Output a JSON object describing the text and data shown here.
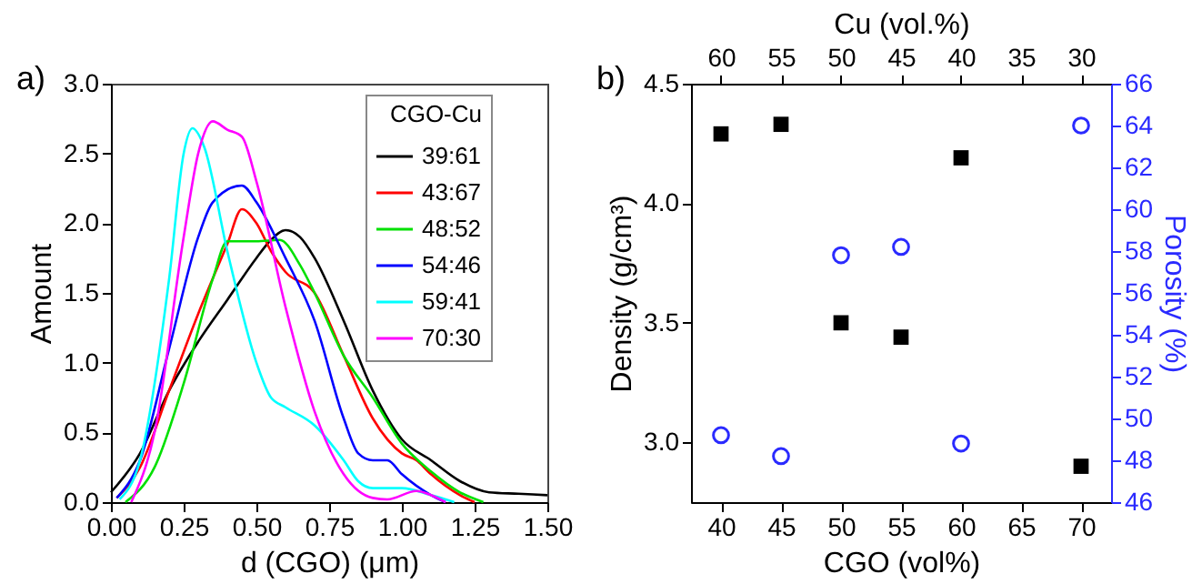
{
  "chart_data": [
    {
      "type": "line",
      "xlabel": "d (CGO) (μm)",
      "ylabel": "Amount",
      "legend_title": "CGO-Cu",
      "legend": "top right",
      "line_style": "solid",
      "marker": "none",
      "annotations": [
        "a)"
      ],
      "xlim": [
        0,
        1.5
      ],
      "ylim": [
        0,
        3.0
      ],
      "xticks": [
        {
          "value": 0,
          "label": "0.00"
        },
        0.25,
        {
          "value": 0.5,
          "label": "0.50"
        },
        0.75,
        {
          "value": 1.0,
          "label": "1.00"
        },
        1.25,
        {
          "value": 1.5,
          "label": "1.50"
        }
      ],
      "yticks": [
        {
          "value": 0,
          "label": "0.0"
        },
        0.5,
        {
          "value": 1.0,
          "label": "1.0"
        },
        1.5,
        {
          "value": 2.0,
          "label": "2.0"
        },
        2.5,
        {
          "value": 3.0,
          "label": "3.0"
        }
      ],
      "series": [
        {
          "name": "39:61",
          "color": "#000000",
          "x": [
            0,
            0.1,
            0.2,
            0.3,
            0.4,
            0.5,
            0.55,
            0.6,
            0.65,
            0.7,
            0.8,
            0.9,
            1.0,
            1.1,
            1.2,
            1.3,
            1.4,
            1.5
          ],
          "values": [
            0.07,
            0.35,
            0.8,
            1.15,
            1.45,
            1.75,
            1.88,
            1.95,
            1.9,
            1.75,
            1.3,
            0.8,
            0.45,
            0.3,
            0.15,
            0.07,
            0.06,
            0.05
          ]
        },
        {
          "name": "43:67",
          "color": "#ff0000",
          "x": [
            0.02,
            0.1,
            0.2,
            0.3,
            0.4,
            0.45,
            0.5,
            0.55,
            0.6,
            0.7,
            0.8,
            0.9,
            1.0,
            1.05,
            1.1,
            1.2,
            1.25
          ],
          "values": [
            0.03,
            0.25,
            0.8,
            1.35,
            1.85,
            2.1,
            2.0,
            1.8,
            1.65,
            1.5,
            1.05,
            0.6,
            0.35,
            0.3,
            0.2,
            0.05,
            0.0
          ]
        },
        {
          "name": "48:52",
          "color": "#00e000",
          "x": [
            0.05,
            0.15,
            0.25,
            0.35,
            0.4,
            0.5,
            0.58,
            0.65,
            0.7,
            0.8,
            0.9,
            1.0,
            1.1,
            1.2,
            1.28
          ],
          "values": [
            0.0,
            0.25,
            0.85,
            1.6,
            1.87,
            1.87,
            1.88,
            1.7,
            1.5,
            1.05,
            0.75,
            0.42,
            0.22,
            0.07,
            0.0
          ]
        },
        {
          "name": "54:46",
          "color": "#0000ff",
          "x": [
            0.02,
            0.1,
            0.2,
            0.3,
            0.35,
            0.45,
            0.5,
            0.6,
            0.7,
            0.8,
            0.85,
            0.9,
            0.95,
            1.0,
            1.1,
            1.15
          ],
          "values": [
            0.03,
            0.3,
            1.1,
            1.9,
            2.15,
            2.27,
            2.15,
            1.75,
            1.3,
            0.6,
            0.35,
            0.3,
            0.3,
            0.2,
            0.05,
            0.0
          ]
        },
        {
          "name": "59:41",
          "color": "#00ffff",
          "x": [
            0.03,
            0.1,
            0.2,
            0.25,
            0.28,
            0.32,
            0.4,
            0.5,
            0.55,
            0.6,
            0.7,
            0.8,
            0.85,
            0.9,
            1.0,
            1.1,
            1.18
          ],
          "values": [
            0.02,
            0.3,
            1.6,
            2.5,
            2.68,
            2.55,
            1.8,
            1.0,
            0.75,
            0.68,
            0.55,
            0.3,
            0.15,
            0.1,
            0.1,
            0.05,
            0.0
          ]
        },
        {
          "name": "70:30",
          "color": "#ff00ff",
          "x": [
            0.07,
            0.15,
            0.25,
            0.3,
            0.35,
            0.4,
            0.45,
            0.5,
            0.6,
            0.7,
            0.8,
            0.9,
            0.95,
            1.05,
            1.1,
            1.15
          ],
          "values": [
            0.0,
            0.5,
            1.9,
            2.5,
            2.73,
            2.67,
            2.62,
            2.3,
            1.4,
            0.65,
            0.2,
            0.03,
            0.02,
            0.08,
            0.05,
            0.0
          ]
        }
      ]
    },
    {
      "type": "scatter",
      "xlabel": "CGO (vol%)",
      "x2label": "Cu (vol.%)",
      "ylabel": "Density (g/cm³)",
      "y2label": "Porosity (%)",
      "annotations": [
        "b)"
      ],
      "x": [
        40,
        45,
        50,
        55,
        60,
        70
      ],
      "xlim": [
        37.5,
        72.5
      ],
      "xticks": [
        40,
        45,
        50,
        55,
        60,
        65,
        70
      ],
      "x2lim": [
        62.5,
        27.5
      ],
      "x2ticks": [
        60,
        55,
        50,
        45,
        40,
        35,
        30
      ],
      "ylim": [
        2.75,
        4.5
      ],
      "yticks": [
        {
          "value": 3.0,
          "label": "3.0"
        },
        3.5,
        {
          "value": 4.0,
          "label": "4.0"
        },
        4.5
      ],
      "y2lim": [
        46,
        66
      ],
      "y2ticks": [
        46,
        48,
        50,
        52,
        54,
        56,
        58,
        60,
        62,
        64,
        66
      ],
      "series": [
        {
          "color": "#000000",
          "marker": "square",
          "values": [
            4.29,
            4.33,
            3.5,
            3.44,
            4.19,
            2.9
          ]
        },
        {
          "color": "#2a2aff",
          "marker": "circle",
          "axis": "y2",
          "values": [
            49.2,
            48.2,
            57.8,
            58.2,
            48.8,
            64.0
          ]
        }
      ]
    }
  ]
}
